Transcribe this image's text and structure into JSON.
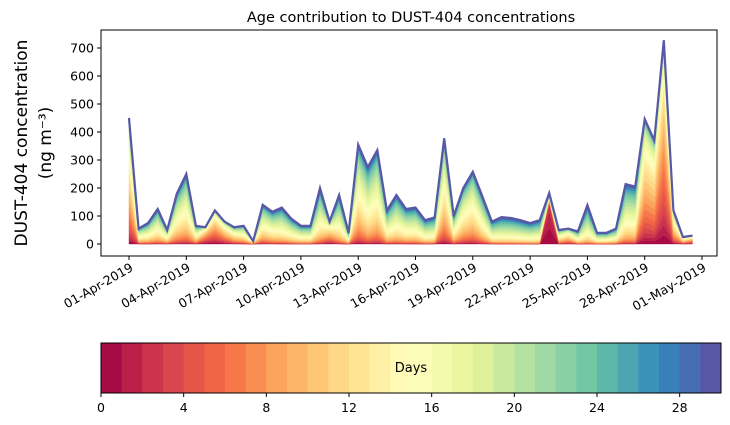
{
  "chart_data": {
    "type": "area",
    "stacked": true,
    "title": "Age contribution to DUST-404 concentrations",
    "ylabel_line1": "DUST-404 concentration",
    "ylabel_line2": "(ng m⁻³)",
    "xlabel": "",
    "ylim": [
      -35,
      765
    ],
    "yticks": [
      0,
      100,
      200,
      300,
      400,
      500,
      600,
      700
    ],
    "xtick_labels": [
      "01-Apr-2019",
      "04-Apr-2019",
      "07-Apr-2019",
      "10-Apr-2019",
      "13-Apr-2019",
      "16-Apr-2019",
      "19-Apr-2019",
      "22-Apr-2019",
      "25-Apr-2019",
      "28-Apr-2019",
      "01-May-2019"
    ],
    "time_step_hours": 12,
    "start": "01-Apr-2019",
    "totals": [
      450,
      55,
      75,
      125,
      50,
      180,
      250,
      65,
      60,
      120,
      80,
      60,
      65,
      10,
      140,
      115,
      130,
      90,
      65,
      65,
      200,
      80,
      175,
      40,
      355,
      275,
      335,
      120,
      175,
      125,
      130,
      85,
      95,
      378,
      100,
      200,
      258,
      170,
      80,
      96,
      93,
      85,
      75,
      85,
      182,
      50,
      55,
      45,
      139,
      40,
      40,
      55,
      214,
      205,
      446,
      370,
      728,
      120,
      25,
      30
    ],
    "mean_age_days": [
      11,
      16,
      17,
      17,
      16,
      16,
      16,
      16,
      7,
      8,
      10,
      13,
      15,
      14,
      16,
      17,
      18,
      18,
      18,
      18,
      18,
      10,
      18,
      18,
      15,
      17,
      16,
      18,
      18,
      18,
      18,
      19,
      19,
      14,
      17,
      15,
      15,
      17,
      19,
      20,
      20,
      20,
      20,
      20,
      1,
      15,
      12,
      18,
      20,
      18,
      18,
      18,
      18,
      18,
      10,
      10,
      7,
      12,
      12,
      8
    ],
    "colorbar": {
      "label": "Days",
      "range": [
        0,
        30
      ],
      "n_bins": 30,
      "ticks": [
        0,
        4,
        8,
        12,
        16,
        20,
        24,
        28
      ],
      "colormap": [
        "#9e0142",
        "#d53e4f",
        "#f46d43",
        "#fdae61",
        "#fee08b",
        "#ffffbf",
        "#e6f598",
        "#abdda4",
        "#66c2a5",
        "#3288bd",
        "#5e4fa2"
      ]
    }
  }
}
